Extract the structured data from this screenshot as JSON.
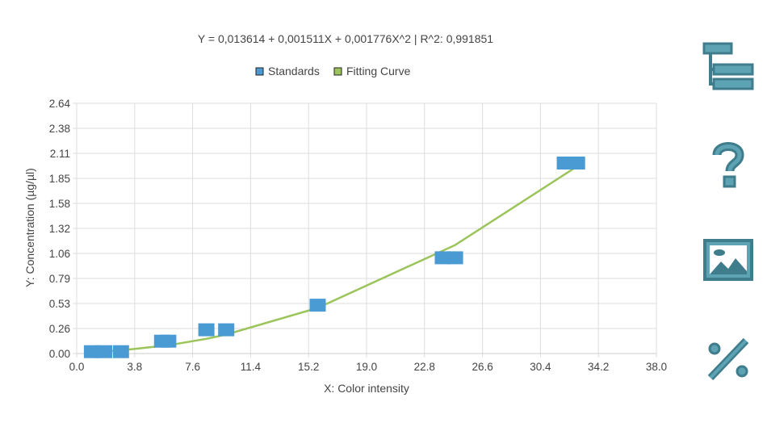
{
  "chart_data": {
    "type": "scatter",
    "title": "Y = 0,013614 + 0,001511X + 0,001776X^2 | R^2: 0,991851",
    "xlabel": "X: Color intensity",
    "ylabel": "Y: Concentration (µg/µl)",
    "xlim": [
      0,
      38
    ],
    "ylim": [
      0,
      2.64
    ],
    "x_ticks": [
      "0.0",
      "3.8",
      "7.6",
      "11.4",
      "15.2",
      "19.0",
      "22.8",
      "26.6",
      "30.4",
      "34.2",
      "38.0"
    ],
    "y_ticks": [
      "0.00",
      "0.26",
      "0.53",
      "0.79",
      "1.06",
      "1.32",
      "1.58",
      "1.85",
      "2.11",
      "2.38",
      "2.64"
    ],
    "grid": true,
    "legend_position": "top-center",
    "series": [
      {
        "name": "Standards",
        "type": "scatter",
        "color": "#4a9ad4",
        "x": [
          1.0,
          1.8,
          2.9,
          5.6,
          6.0,
          8.5,
          9.8,
          15.8,
          24.0,
          24.8,
          32.0,
          32.8
        ],
        "y": [
          0.02,
          0.02,
          0.02,
          0.13,
          0.13,
          0.25,
          0.25,
          0.51,
          1.01,
          1.01,
          2.01,
          2.01
        ]
      },
      {
        "name": "Fitting Curve",
        "type": "line",
        "color": "#9bc45a",
        "x": [
          1.0,
          2.9,
          6.0,
          8.5,
          9.8,
          15.8,
          24.8,
          32.8
        ],
        "y": [
          0.017,
          0.033,
          0.087,
          0.155,
          0.2,
          0.481,
          1.144,
          1.974
        ]
      }
    ]
  },
  "sidebar": {
    "buttons": [
      {
        "icon": "hierarchy-icon",
        "color": "#3f7d8c"
      },
      {
        "icon": "question-icon",
        "color": "#3f7d8c"
      },
      {
        "icon": "image-icon",
        "color": "#3f7d8c"
      },
      {
        "icon": "percent-icon",
        "color": "#3f7d8c"
      }
    ]
  }
}
